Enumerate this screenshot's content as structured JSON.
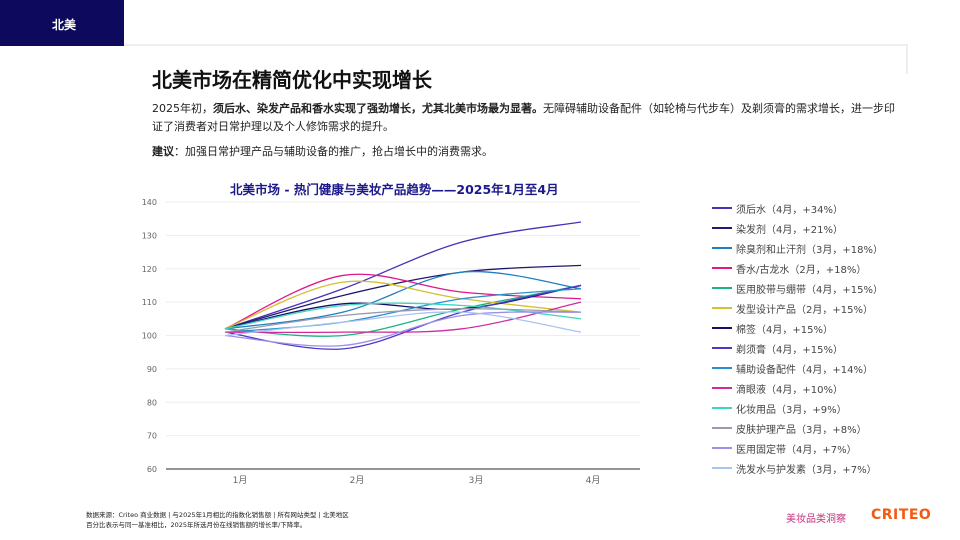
{
  "tag": "北美",
  "title": "北美市场在精简优化中实现增长",
  "intro": {
    "prefix": "2025年初，",
    "bold": "须后水、染发产品和香水实现了强劲增长，尤其北美市场最为显著。",
    "rest": "无障碍辅助设备配件（如轮椅与代步车）及剃须膏的需求增长，进一步印证了消费者对日常护理以及个人修饰需求的提升。"
  },
  "advice": {
    "label": "建议",
    "text": "：加强日常护理产品与辅助设备的推广，抢占增长中的消费需求。"
  },
  "footer": {
    "line1": "数据来源：Criteo 商业数据 | 与2025年1月相比的指数化销售额 | 所有网站类型 | 北美地区",
    "line2": "百分比表示与同一基准相比，2025年所选月份在线销售额的增长率/下降率。"
  },
  "brand": "美妆品类洞察",
  "logo": "CRITEO",
  "chart_data": {
    "type": "line",
    "title": "北美市场 - 热门健康与美妆产品趋势——2025年1月至4月",
    "categories": [
      "1月",
      "2月",
      "3月",
      "4月"
    ],
    "ylim": [
      60,
      140
    ],
    "yticks": [
      60,
      70,
      80,
      90,
      100,
      110,
      120,
      130,
      140
    ],
    "grid": true,
    "legend": "right",
    "series": [
      {
        "name": "须后水（4月，+34%）",
        "color": "#4b2fb8",
        "values": [
          102,
          114,
          128,
          134
        ]
      },
      {
        "name": "染发剂（4月，+21%）",
        "color": "#1e1a6e",
        "values": [
          102,
          112,
          119,
          121
        ]
      },
      {
        "name": "除臭剂和止汗剂（3月，+18%）",
        "color": "#1f7fc0",
        "values": [
          102,
          107,
          119,
          114
        ]
      },
      {
        "name": "香水/古龙水（2月，+18%）",
        "color": "#e0168a",
        "values": [
          102,
          118,
          113,
          111
        ]
      },
      {
        "name": "医用胶带与绷带（4月，+15%）",
        "color": "#1db37f",
        "values": [
          102,
          100,
          108,
          115
        ]
      },
      {
        "name": "发型设计产品（2月，+15%）",
        "color": "#d4c030",
        "values": [
          102,
          116,
          111,
          107
        ]
      },
      {
        "name": "棉签（4月，+15%）",
        "color": "#14106a",
        "values": [
          102,
          109.5,
          108,
          115
        ]
      },
      {
        "name": "剃须膏（4月，+15%）",
        "color": "#4a3ac8",
        "values": [
          101,
          96,
          107,
          115
        ]
      },
      {
        "name": "辅助设备配件（4月，+14%）",
        "color": "#2a8fd0",
        "values": [
          101,
          104,
          111,
          114
        ]
      },
      {
        "name": "滴眼液（4月，+10%）",
        "color": "#d12aa0",
        "values": [
          101,
          101,
          102,
          110
        ]
      },
      {
        "name": "化妆用品（3月，+9%）",
        "color": "#3dd6c0",
        "values": [
          102,
          109,
          109,
          105
        ]
      },
      {
        "name": "皮肤护理产品（3月，+8%）",
        "color": "#9a9ab0",
        "values": [
          101,
          106,
          108,
          107
        ]
      },
      {
        "name": "医用固定带（4月，+7%）",
        "color": "#9b8fe8",
        "values": [
          100,
          97,
          106,
          107
        ]
      },
      {
        "name": "洗发水与护发素（3月，+7%）",
        "color": "#a8c4f0",
        "values": [
          100,
          104,
          107,
          101
        ]
      }
    ]
  }
}
